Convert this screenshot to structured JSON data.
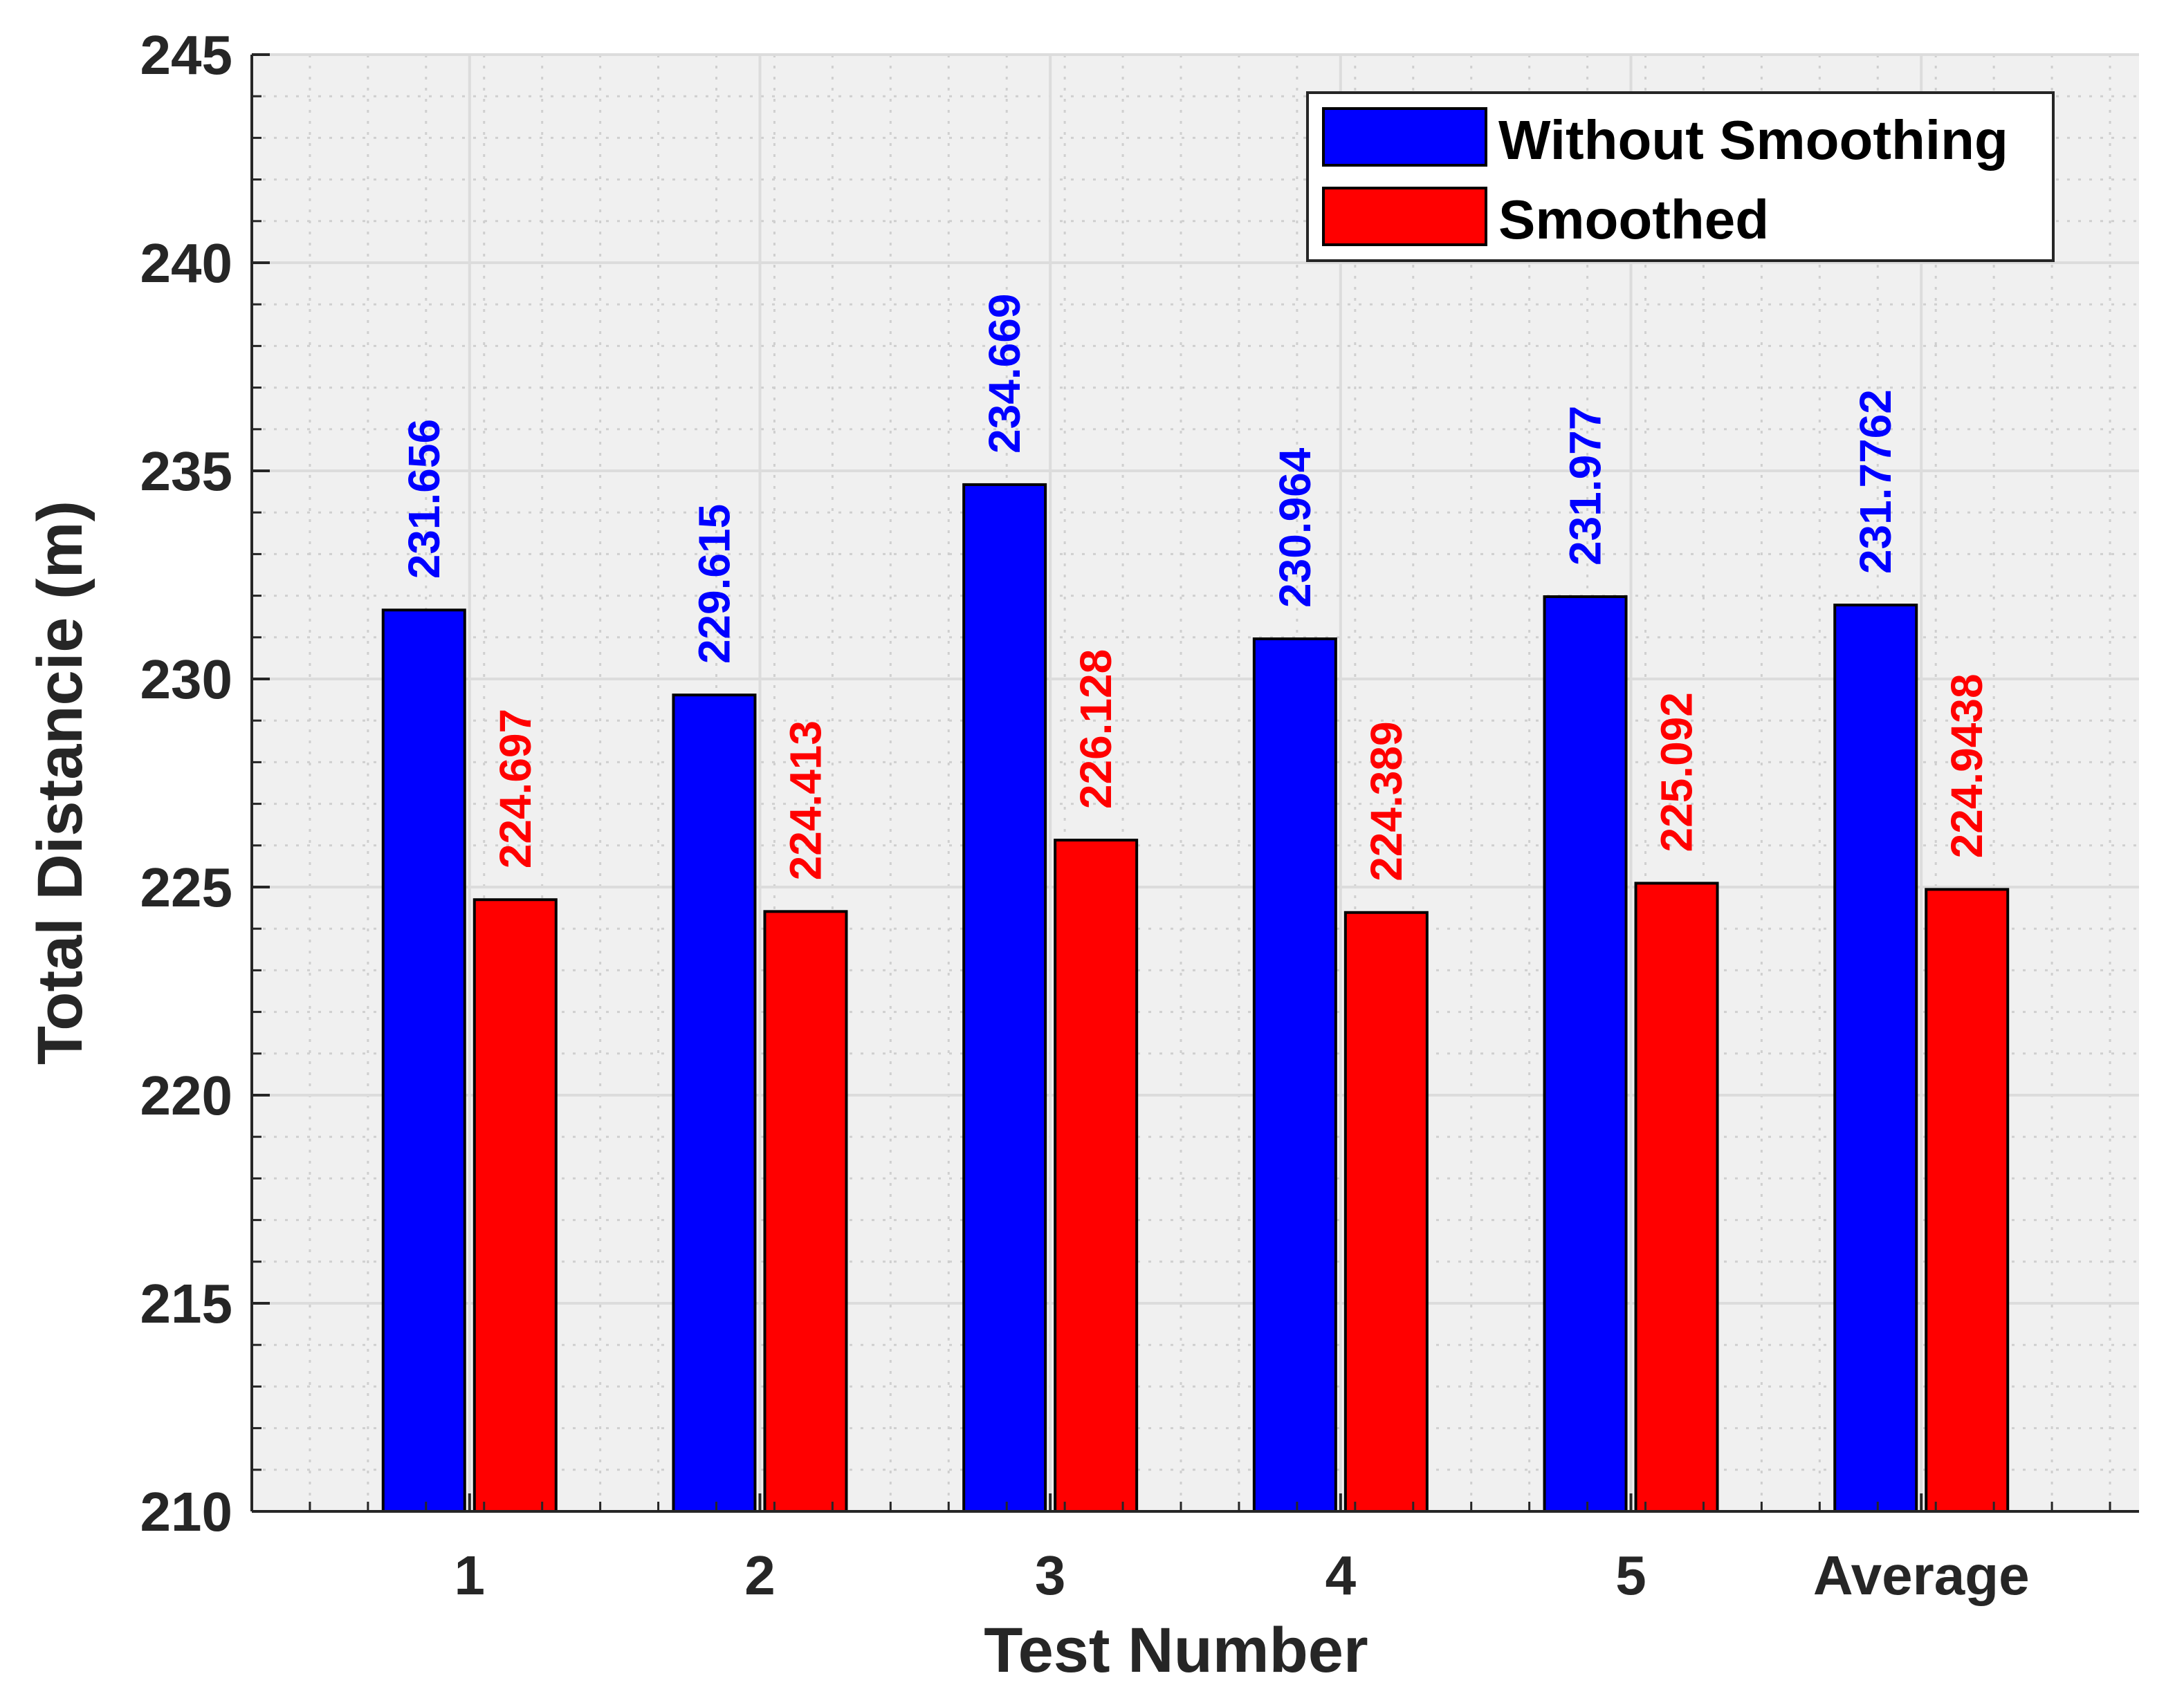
{
  "chart_data": {
    "type": "bar",
    "title": "",
    "xlabel": "Test Number",
    "ylabel": "Total Distancie (m)",
    "categories": [
      "1",
      "2",
      "3",
      "4",
      "5",
      "Average"
    ],
    "series": [
      {
        "name": "Without Smoothing",
        "color": "#0000ff",
        "values": [
          231.656,
          229.615,
          234.669,
          230.964,
          231.977,
          231.7762
        ],
        "labels": [
          "231.656",
          "229.615",
          "234.669",
          "230.964",
          "231.977",
          "231.7762"
        ]
      },
      {
        "name": "Smoothed",
        "color": "#ff0000",
        "values": [
          224.697,
          224.413,
          226.128,
          224.389,
          225.092,
          224.9438
        ],
        "labels": [
          "224.697",
          "224.413",
          "226.128",
          "224.389",
          "225.092",
          "224.9438"
        ]
      }
    ],
    "ylim": [
      210,
      245
    ],
    "yticks": [
      210,
      215,
      220,
      225,
      230,
      235,
      240,
      245
    ],
    "grid": true,
    "minor_grid": true,
    "legend_position": "top-right",
    "background_color": "#f0f0f0",
    "grid_color": "#dcdcdc",
    "axis_color": "#262626"
  }
}
